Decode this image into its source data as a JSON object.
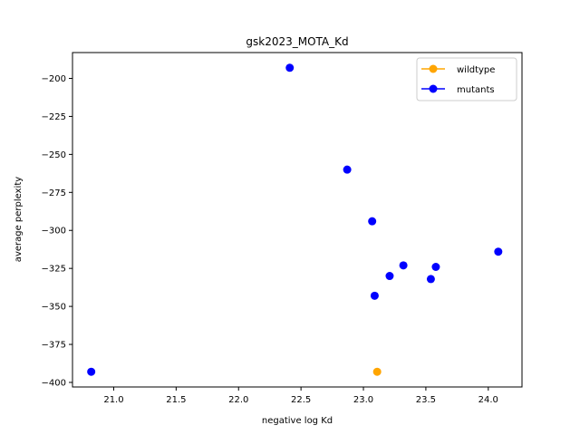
{
  "chart_data": {
    "type": "scatter",
    "title": "gsk2023_MOTA_Kd",
    "xlabel": "negative log Kd",
    "ylabel": "average perplexity",
    "xlim": [
      20.67,
      24.27
    ],
    "ylim": [
      -403,
      -183
    ],
    "xticks": [
      21.0,
      21.5,
      22.0,
      22.5,
      23.0,
      23.5,
      24.0
    ],
    "xtick_labels": [
      "21.0",
      "21.5",
      "22.0",
      "22.5",
      "23.0",
      "23.5",
      "24.0"
    ],
    "yticks": [
      -200,
      -225,
      -250,
      -275,
      -300,
      -325,
      -350,
      -375,
      -400
    ],
    "ytick_labels": [
      "−200",
      "−225",
      "−250",
      "−275",
      "−300",
      "−325",
      "−350",
      "−375",
      "−400"
    ],
    "grid": false,
    "legend_position": "top-right",
    "series": [
      {
        "name": "wildtype",
        "color": "#ffa500",
        "points": [
          {
            "x": 23.11,
            "y": -393
          }
        ]
      },
      {
        "name": "mutants",
        "color": "#0000ff",
        "points": [
          {
            "x": 22.41,
            "y": -193
          },
          {
            "x": 22.87,
            "y": -260
          },
          {
            "x": 23.07,
            "y": -294
          },
          {
            "x": 24.08,
            "y": -314
          },
          {
            "x": 23.32,
            "y": -323
          },
          {
            "x": 23.58,
            "y": -324
          },
          {
            "x": 23.21,
            "y": -330
          },
          {
            "x": 23.54,
            "y": -332
          },
          {
            "x": 23.09,
            "y": -343
          },
          {
            "x": 20.82,
            "y": -393
          }
        ]
      }
    ]
  }
}
